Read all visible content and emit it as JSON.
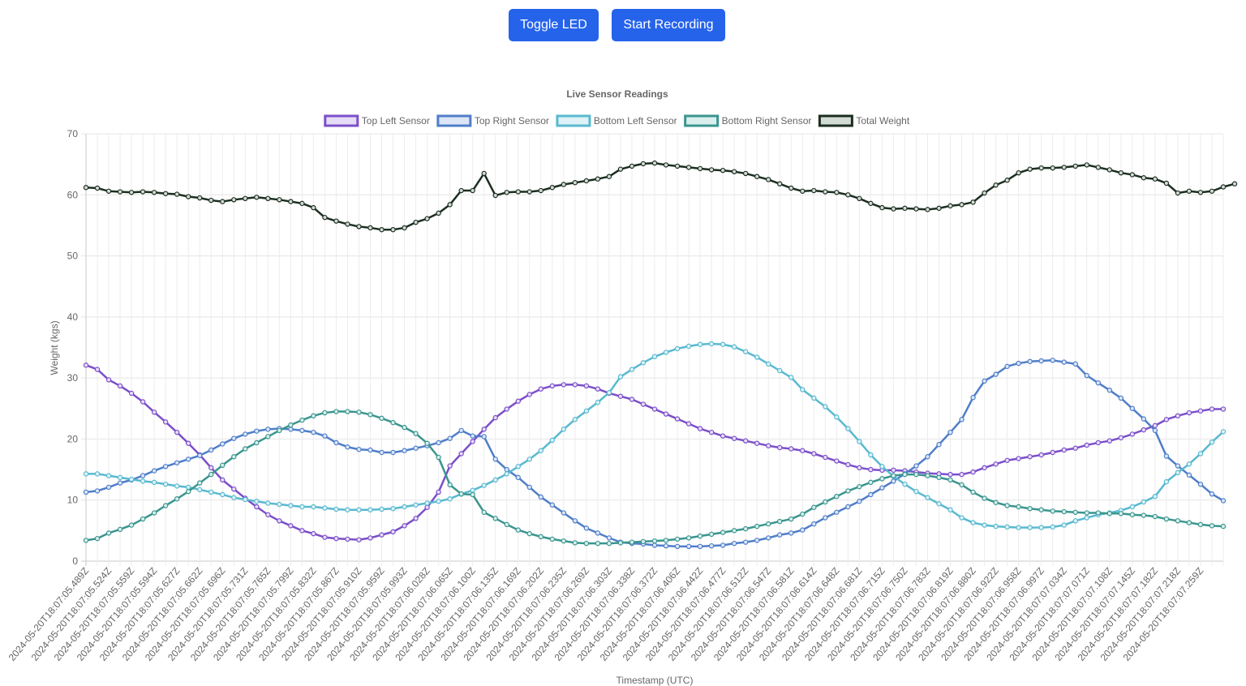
{
  "controls": {
    "toggle_led_label": "Toggle LED",
    "start_recording_label": "Start Recording"
  },
  "chart_data": {
    "type": "line",
    "title": "Live Sensor Readings",
    "xlabel": "Timestamp (UTC)",
    "ylabel": "Weight (kgs)",
    "ylim": [
      0,
      70
    ],
    "yticks": [
      0,
      10,
      20,
      30,
      40,
      50,
      60,
      70
    ],
    "grid": true,
    "legend_position": "top-center",
    "x_tick_labels": [
      "2024-05-20T18:07:05.489Z",
      "2024-05-20T18:07:05.524Z",
      "2024-05-20T18:07:05.559Z",
      "2024-05-20T18:07:05.594Z",
      "2024-05-20T18:07:05.627Z",
      "2024-05-20T18:07:05.662Z",
      "2024-05-20T18:07:05.696Z",
      "2024-05-20T18:07:05.731Z",
      "2024-05-20T18:07:05.765Z",
      "2024-05-20T18:07:05.799Z",
      "2024-05-20T18:07:05.832Z",
      "2024-05-20T18:07:05.867Z",
      "2024-05-20T18:07:05.910Z",
      "2024-05-20T18:07:05.959Z",
      "2024-05-20T18:07:05.993Z",
      "2024-05-20T18:07:06.028Z",
      "2024-05-20T18:07:06.065Z",
      "2024-05-20T18:07:06.100Z",
      "2024-05-20T18:07:06.135Z",
      "2024-05-20T18:07:06.169Z",
      "2024-05-20T18:07:06.202Z",
      "2024-05-20T18:07:06.235Z",
      "2024-05-20T18:07:06.269Z",
      "2024-05-20T18:07:06.303Z",
      "2024-05-20T18:07:06.338Z",
      "2024-05-20T18:07:06.372Z",
      "2024-05-20T18:07:06.406Z",
      "2024-05-20T18:07:06.442Z",
      "2024-05-20T18:07:06.477Z",
      "2024-05-20T18:07:06.512Z",
      "2024-05-20T18:07:06.547Z",
      "2024-05-20T18:07:06.581Z",
      "2024-05-20T18:07:06.614Z",
      "2024-05-20T18:07:06.648Z",
      "2024-05-20T18:07:06.681Z",
      "2024-05-20T18:07:06.715Z",
      "2024-05-20T18:07:06.750Z",
      "2024-05-20T18:07:06.783Z",
      "2024-05-20T18:07:06.819Z",
      "2024-05-20T18:07:06.880Z",
      "2024-05-20T18:07:06.922Z",
      "2024-05-20T18:07:06.958Z",
      "2024-05-20T18:07:06.997Z",
      "2024-05-20T18:07:07.034Z",
      "2024-05-20T18:07:07.071Z",
      "2024-05-20T18:07:07.108Z",
      "2024-05-20T18:07:07.145Z",
      "2024-05-20T18:07:07.182Z",
      "2024-05-20T18:07:07.218Z",
      "2024-05-20T18:07:07.259Z"
    ],
    "series": [
      {
        "name": "Top Left Sensor",
        "color": "#7b4fc9",
        "fill": "#e6dcf7",
        "values": [
          32.1,
          31.4,
          29.7,
          28.7,
          27.5,
          26.1,
          24.4,
          22.8,
          21.1,
          19.3,
          17.4,
          15.3,
          13.3,
          11.8,
          10.3,
          8.9,
          7.6,
          6.6,
          5.8,
          5.0,
          4.5,
          3.9,
          3.7,
          3.6,
          3.5,
          3.8,
          4.3,
          4.8,
          5.8,
          7.0,
          8.8,
          11.3,
          15.6,
          17.6,
          19.6,
          21.6,
          23.5,
          24.9,
          26.2,
          27.3,
          28.2,
          28.7,
          28.9,
          28.9,
          28.7,
          28.2,
          27.5,
          27.0,
          26.5,
          25.7,
          24.9,
          24.1,
          23.3,
          22.5,
          21.7,
          21.1,
          20.5,
          20.1,
          19.7,
          19.3,
          18.9,
          18.6,
          18.4,
          18.1,
          17.6,
          17.0,
          16.4,
          15.8,
          15.3,
          15.0,
          14.9,
          14.9,
          14.8,
          14.6,
          14.4,
          14.3,
          14.2,
          14.2,
          14.6,
          15.3,
          15.9,
          16.5,
          16.8,
          17.1,
          17.4,
          17.8,
          18.2,
          18.5,
          19.0,
          19.4,
          19.7,
          20.2,
          20.8,
          21.5,
          22.2,
          23.2,
          23.8,
          24.3,
          24.6,
          24.9,
          24.9
        ]
      },
      {
        "name": "Top Right Sensor",
        "color": "#4f7ec9",
        "fill": "#dce6f7",
        "values": [
          11.3,
          11.5,
          12.1,
          12.8,
          13.3,
          14.0,
          14.8,
          15.5,
          16.1,
          16.7,
          17.3,
          18.2,
          19.2,
          20.1,
          20.8,
          21.3,
          21.6,
          21.7,
          21.6,
          21.4,
          21.1,
          20.5,
          19.4,
          18.7,
          18.3,
          18.2,
          17.8,
          17.8,
          18.1,
          18.5,
          18.9,
          19.4,
          20.1,
          21.4,
          20.5,
          20.4,
          16.7,
          15.0,
          13.7,
          12.1,
          10.5,
          9.2,
          7.9,
          6.6,
          5.4,
          4.6,
          3.8,
          3.1,
          2.9,
          2.8,
          2.6,
          2.5,
          2.4,
          2.4,
          2.4,
          2.5,
          2.6,
          2.9,
          3.1,
          3.4,
          3.8,
          4.3,
          4.6,
          5.1,
          6.1,
          7.1,
          8.0,
          8.9,
          9.8,
          10.9,
          12.0,
          13.1,
          14.3,
          15.6,
          17.1,
          19.1,
          21.1,
          23.2,
          26.8,
          29.5,
          30.6,
          31.9,
          32.4,
          32.7,
          32.8,
          32.9,
          32.6,
          32.3,
          30.4,
          29.2,
          28.0,
          26.7,
          25.0,
          23.3,
          21.4,
          17.2,
          15.6,
          14.1,
          12.6,
          11.0,
          9.9
        ]
      },
      {
        "name": "Bottom Left Sensor",
        "color": "#59b9d0",
        "fill": "#dff2f7",
        "values": [
          14.3,
          14.3,
          14.0,
          13.7,
          13.4,
          13.1,
          12.9,
          12.6,
          12.3,
          12.1,
          11.7,
          11.3,
          10.9,
          10.4,
          10.1,
          9.8,
          9.5,
          9.3,
          9.1,
          8.9,
          8.9,
          8.7,
          8.5,
          8.4,
          8.4,
          8.4,
          8.5,
          8.6,
          8.9,
          9.2,
          9.5,
          9.8,
          10.2,
          11.0,
          11.6,
          12.4,
          13.3,
          14.3,
          15.5,
          16.7,
          18.1,
          19.8,
          21.6,
          23.2,
          24.6,
          26.0,
          27.6,
          30.2,
          31.4,
          32.5,
          33.5,
          34.2,
          34.8,
          35.2,
          35.5,
          35.6,
          35.5,
          35.1,
          34.3,
          33.4,
          32.3,
          31.2,
          30.1,
          28.1,
          26.7,
          25.3,
          23.6,
          21.7,
          19.6,
          17.4,
          15.5,
          13.9,
          12.6,
          11.4,
          10.4,
          9.4,
          8.4,
          7.1,
          6.3,
          5.9,
          5.7,
          5.6,
          5.5,
          5.5,
          5.5,
          5.6,
          5.9,
          6.6,
          7.1,
          7.6,
          7.9,
          8.3,
          8.9,
          9.7,
          10.6,
          13.0,
          14.5,
          15.9,
          17.6,
          19.5,
          21.2
        ]
      },
      {
        "name": "Bottom Right Sensor",
        "color": "#3a958e",
        "fill": "#d9efed",
        "values": [
          3.4,
          3.7,
          4.6,
          5.2,
          5.9,
          6.9,
          7.9,
          9.1,
          10.2,
          11.4,
          12.8,
          14.2,
          15.7,
          17.1,
          18.4,
          19.4,
          20.4,
          21.4,
          22.3,
          23.1,
          23.8,
          24.3,
          24.5,
          24.5,
          24.4,
          24.0,
          23.4,
          22.7,
          21.9,
          20.9,
          19.3,
          17.0,
          12.5,
          11.0,
          10.9,
          8.0,
          7.0,
          6.0,
          5.1,
          4.5,
          4.0,
          3.6,
          3.3,
          3.0,
          2.9,
          2.9,
          2.9,
          3.0,
          3.1,
          3.2,
          3.3,
          3.4,
          3.6,
          3.8,
          4.1,
          4.4,
          4.7,
          5.0,
          5.3,
          5.7,
          6.1,
          6.5,
          6.9,
          7.7,
          8.8,
          9.7,
          10.6,
          11.5,
          12.2,
          12.9,
          13.5,
          14.0,
          14.2,
          14.2,
          14.0,
          13.7,
          13.3,
          12.5,
          11.3,
          10.3,
          9.6,
          9.1,
          8.9,
          8.6,
          8.4,
          8.2,
          8.1,
          8.0,
          7.9,
          7.9,
          7.8,
          7.8,
          7.6,
          7.5,
          7.3,
          6.9,
          6.6,
          6.3,
          6.0,
          5.8,
          5.7
        ]
      },
      {
        "name": "Total Weight",
        "color": "#1c2e20",
        "fill": "#d3dbd5",
        "values": [
          61.2,
          61.1,
          60.6,
          60.5,
          60.4,
          60.5,
          60.4,
          60.2,
          60.1,
          59.7,
          59.5,
          59.1,
          58.9,
          59.2,
          59.4,
          59.6,
          59.4,
          59.2,
          58.9,
          58.6,
          57.9,
          56.3,
          55.7,
          55.2,
          54.8,
          54.6,
          54.3,
          54.3,
          54.6,
          55.5,
          56.1,
          57.0,
          58.4,
          60.7,
          60.7,
          63.5,
          59.9,
          60.4,
          60.5,
          60.5,
          60.7,
          61.2,
          61.7,
          62.0,
          62.3,
          62.6,
          63.0,
          64.2,
          64.7,
          65.1,
          65.2,
          64.9,
          64.7,
          64.5,
          64.3,
          64.1,
          64.0,
          63.8,
          63.5,
          63.0,
          62.5,
          61.8,
          61.1,
          60.6,
          60.7,
          60.5,
          60.4,
          60.0,
          59.4,
          58.6,
          57.9,
          57.7,
          57.8,
          57.7,
          57.6,
          57.8,
          58.2,
          58.4,
          58.8,
          60.3,
          61.6,
          62.4,
          63.6,
          64.2,
          64.4,
          64.4,
          64.5,
          64.7,
          64.9,
          64.5,
          64.1,
          63.6,
          63.3,
          62.8,
          62.6,
          61.9,
          60.3,
          60.6,
          60.4,
          60.6,
          61.3,
          61.8
        ]
      }
    ]
  }
}
